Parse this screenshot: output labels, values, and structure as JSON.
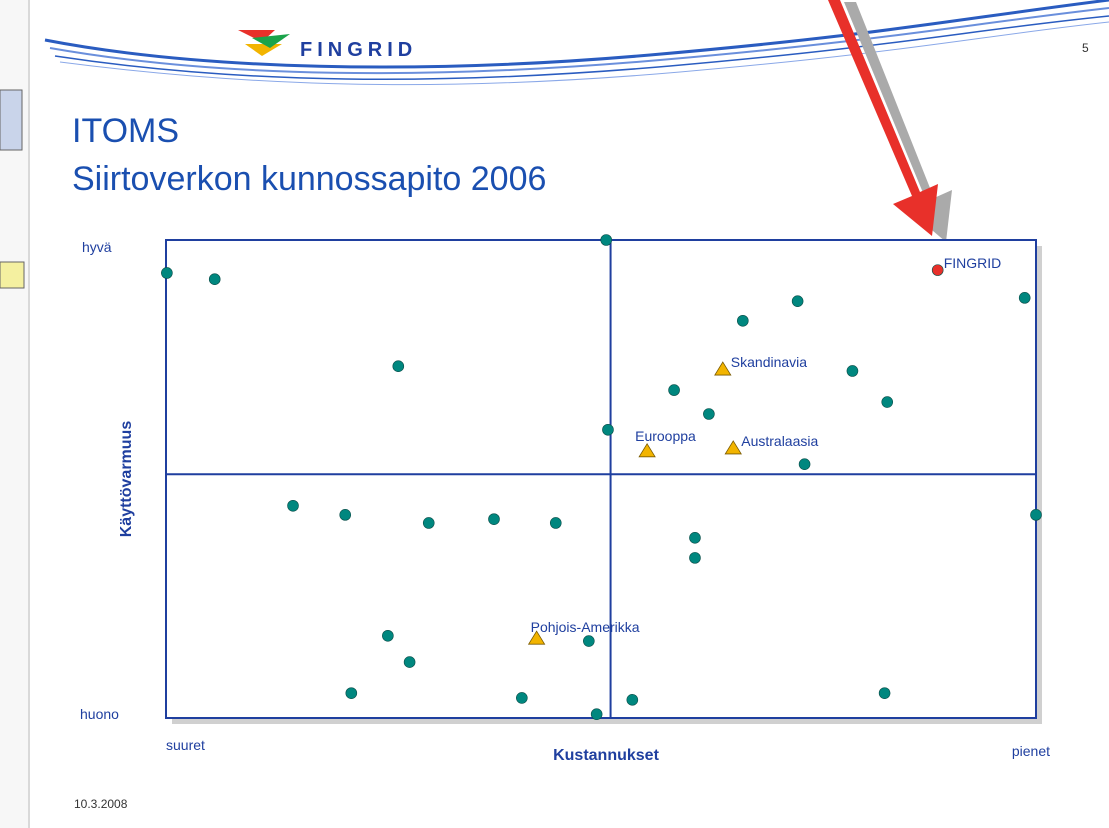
{
  "header": {
    "logo": "FINGRID",
    "page_number": "5"
  },
  "title": [
    "ITOMS",
    "Siirtoverkon kunnossapito 2006"
  ],
  "footer": {
    "date": "10.3.2008"
  },
  "chart_data": {
    "type": "scatter",
    "xlabel": "Kustannukset",
    "ylabel": "Käyttövarmuus",
    "x_end_labels": [
      "suuret",
      "pienet"
    ],
    "y_end_labels": [
      "huono",
      "hyvä"
    ],
    "xlim": [
      0,
      100
    ],
    "ylim": [
      0,
      100
    ],
    "quadrant_lines": {
      "x": 51.1,
      "y": 51
    },
    "series": [
      {
        "color": "#00877f",
        "marker": "circle",
        "x": [
          0.1,
          5.6,
          26.7,
          50.6,
          50.8,
          14.6,
          20.6,
          30.2,
          37.7,
          44.8,
          25.5,
          28.0,
          21.3,
          40.9,
          48.6,
          49.5,
          53.6,
          60.8,
          60.8,
          58.4,
          62.4,
          66.3,
          72.6,
          78.9,
          82.9,
          73.4,
          98.7,
          100,
          82.6
        ],
        "y": [
          93.1,
          91.8,
          73.6,
          100,
          60.3,
          44.4,
          42.5,
          40.8,
          41.6,
          40.8,
          17.2,
          11.7,
          5.2,
          4.2,
          16.1,
          0.8,
          3.8,
          37.7,
          33.5,
          68.6,
          63.6,
          83.1,
          87.2,
          72.6,
          66.1,
          53.1,
          87.9,
          42.5,
          5.2
        ]
      },
      {
        "color": "#e8302a",
        "marker": "circle",
        "x": [
          88.7
        ],
        "y": [
          93.7
        ],
        "labels": [
          "FINGRID"
        ]
      },
      {
        "color": "#f2b400",
        "marker": "triangle",
        "x": [
          64.0,
          55.3,
          65.2,
          42.6
        ],
        "y": [
          73.0,
          55.9,
          56.5,
          16.7
        ],
        "labels": [
          "Skandinavia",
          "Eurooppa",
          "Australaasia",
          "Pohjois-Amerikka"
        ]
      }
    ]
  }
}
